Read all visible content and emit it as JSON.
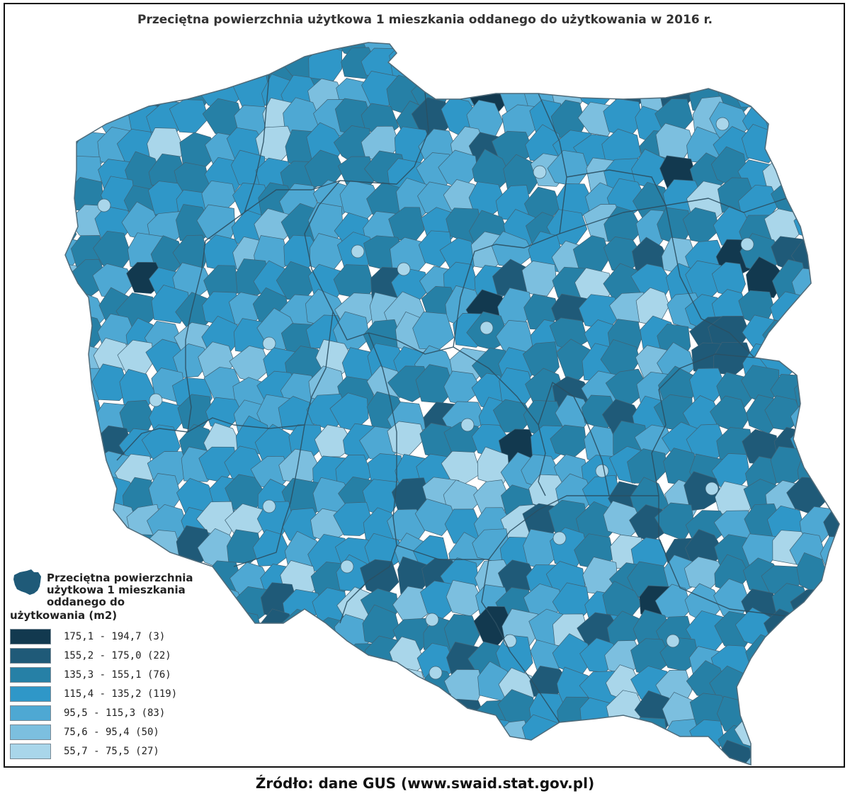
{
  "title": "Przeciętna powierzchnia użytkowa 1 mieszkania oddanego do użytkowania w 2016 r.",
  "legend": {
    "title": "Przeciętna powierzchnia\nużytkowa 1 mieszkania\noddanego do",
    "title_tail": "użytkowania (m2)",
    "icon": "poland-map-icon",
    "classes": [
      {
        "label": "175,1 - 194,7 (3)",
        "color": "#12394f"
      },
      {
        "label": "155,2 - 175,0 (22)",
        "color": "#1f5a78"
      },
      {
        "label": "135,3 - 155,1 (76)",
        "color": "#2680a6"
      },
      {
        "label": "115,4 - 135,2 (119)",
        "color": "#2f97c8"
      },
      {
        "label": "95,5 - 115,3 (83)",
        "color": "#4ea8d3"
      },
      {
        "label": "75,6 - 95,4 (50)",
        "color": "#7cbfdf"
      },
      {
        "label": "55,7 - 75,5 (27)",
        "color": "#a9d6ea"
      }
    ]
  },
  "source": "Źródło: dane GUS (www.swaid.stat.gov.pl)"
}
